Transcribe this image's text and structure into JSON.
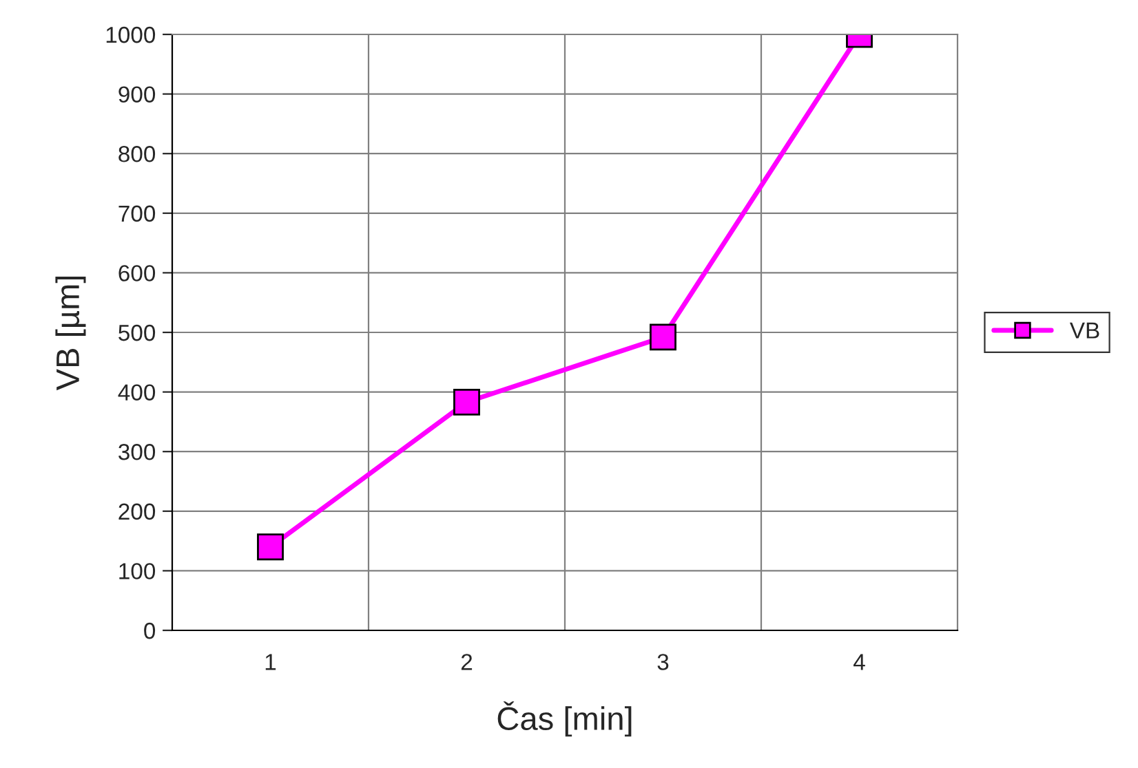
{
  "chart_data": {
    "type": "line",
    "xlabel": "Čas [min]",
    "ylabel": "VB [µm]",
    "categories": [
      "1",
      "2",
      "3",
      "4"
    ],
    "series": [
      {
        "name": "VB",
        "color": "#ff00ff",
        "values": [
          140,
          383,
          492,
          1000
        ]
      }
    ],
    "ylim": [
      0,
      1000
    ],
    "yticks": [
      0,
      100,
      200,
      300,
      400,
      500,
      600,
      700,
      800,
      900,
      1000
    ],
    "grid": true,
    "legend": "right",
    "marker": "square",
    "line_style": "solid"
  }
}
